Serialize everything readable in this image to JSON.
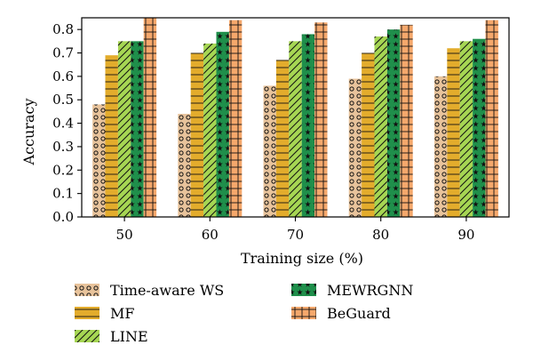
{
  "chart_data": {
    "type": "bar",
    "title": "",
    "xlabel": "Training size (%)",
    "ylabel": "Accuracy",
    "ylim": [
      0,
      0.85
    ],
    "yticks": [
      0.0,
      0.1,
      0.2,
      0.3,
      0.4,
      0.5,
      0.6,
      0.7,
      0.8
    ],
    "ytick_labels": [
      "0.0",
      "0.1",
      "0.2",
      "0.3",
      "0.4",
      "0.5",
      "0.6",
      "0.7",
      "0.8"
    ],
    "categories": [
      "50",
      "60",
      "70",
      "80",
      "90"
    ],
    "series": [
      {
        "name": "Time-aware WS",
        "values": [
          0.48,
          0.44,
          0.56,
          0.59,
          0.6
        ],
        "color": "#e8c39b",
        "pattern": "circles"
      },
      {
        "name": "MF",
        "values": [
          0.69,
          0.7,
          0.67,
          0.7,
          0.72
        ],
        "color": "#e3ac2c",
        "pattern": "hlines"
      },
      {
        "name": "LINE",
        "values": [
          0.75,
          0.74,
          0.75,
          0.77,
          0.75
        ],
        "color": "#a6d653",
        "pattern": "diagonal"
      },
      {
        "name": "MEWRGNN",
        "values": [
          0.75,
          0.79,
          0.78,
          0.8,
          0.76
        ],
        "color": "#1f8f4b",
        "pattern": "stars"
      },
      {
        "name": "BeGuard",
        "values": [
          0.85,
          0.84,
          0.83,
          0.82,
          0.84
        ],
        "color": "#f5a86c",
        "pattern": "grid"
      }
    ],
    "grid": false,
    "legend_position": "bottom"
  }
}
